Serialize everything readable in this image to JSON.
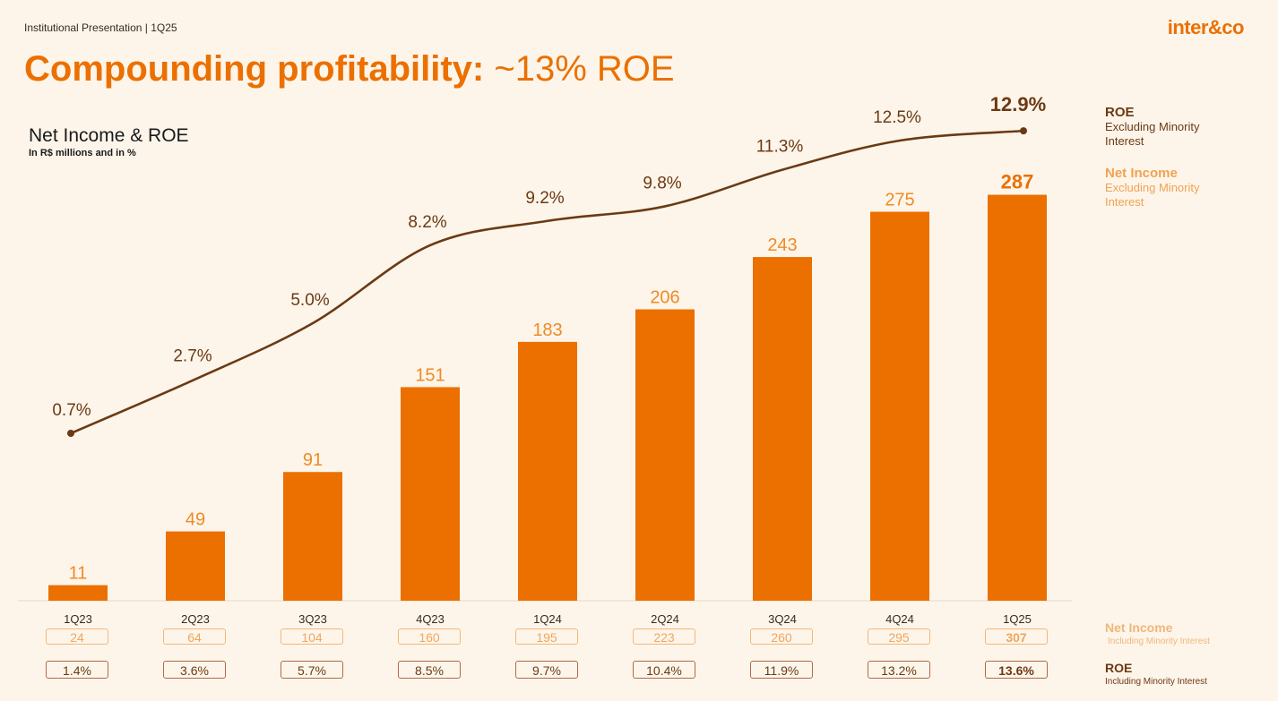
{
  "header": {
    "label": "Institutional Presentation | 1Q25",
    "logo": "inter&co"
  },
  "page": {
    "title_bold": "Compounding profitability:",
    "title_light": "~13% ROE"
  },
  "colors": {
    "bar": "#eb7000",
    "line": "#6b3a14",
    "bar_label": "#f08a24",
    "background": "#fdf5ea"
  },
  "chart_data": {
    "type": "bar",
    "title": "Net Income & ROE",
    "subtitle": "In R$ millions and in %",
    "categories": [
      "1Q23",
      "2Q23",
      "3Q23",
      "4Q23",
      "1Q24",
      "2Q24",
      "3Q24",
      "4Q24",
      "1Q25"
    ],
    "series": [
      {
        "name": "Net Income Excluding Minority Interest",
        "type": "bar",
        "values": [
          11,
          49,
          91,
          151,
          183,
          206,
          243,
          275,
          287
        ],
        "labels": [
          "11",
          "49",
          "91",
          "151",
          "183",
          "206",
          "243",
          "275",
          "287"
        ]
      },
      {
        "name": "ROE Excluding Minority Interest",
        "type": "line",
        "values": [
          0.7,
          2.7,
          5.0,
          8.2,
          9.2,
          9.8,
          11.3,
          12.5,
          12.9
        ],
        "labels": [
          "0.7%",
          "2.7%",
          "5.0%",
          "8.2%",
          "9.2%",
          "9.8%",
          "11.3%",
          "12.5%",
          "12.9%"
        ]
      }
    ],
    "bar_ylim": [
      0,
      300
    ],
    "line_ylim": [
      0,
      14
    ],
    "legend": {
      "roe_title": "ROE",
      "roe_sub": "Excluding Minority Interest",
      "ni_title": "Net Income",
      "ni_sub": "Excluding Minority Interest"
    },
    "table": {
      "net_income_incl": [
        "24",
        "64",
        "104",
        "160",
        "195",
        "223",
        "260",
        "295",
        "307"
      ],
      "roe_incl": [
        "1.4%",
        "3.6%",
        "5.7%",
        "8.5%",
        "9.7%",
        "10.4%",
        "11.9%",
        "13.2%",
        "13.6%"
      ],
      "ni_label_title": "Net Income",
      "ni_label_sub": "Including Minority Interest",
      "roe_label_title": "ROE",
      "roe_label_sub": "Including Minority Interest"
    }
  }
}
